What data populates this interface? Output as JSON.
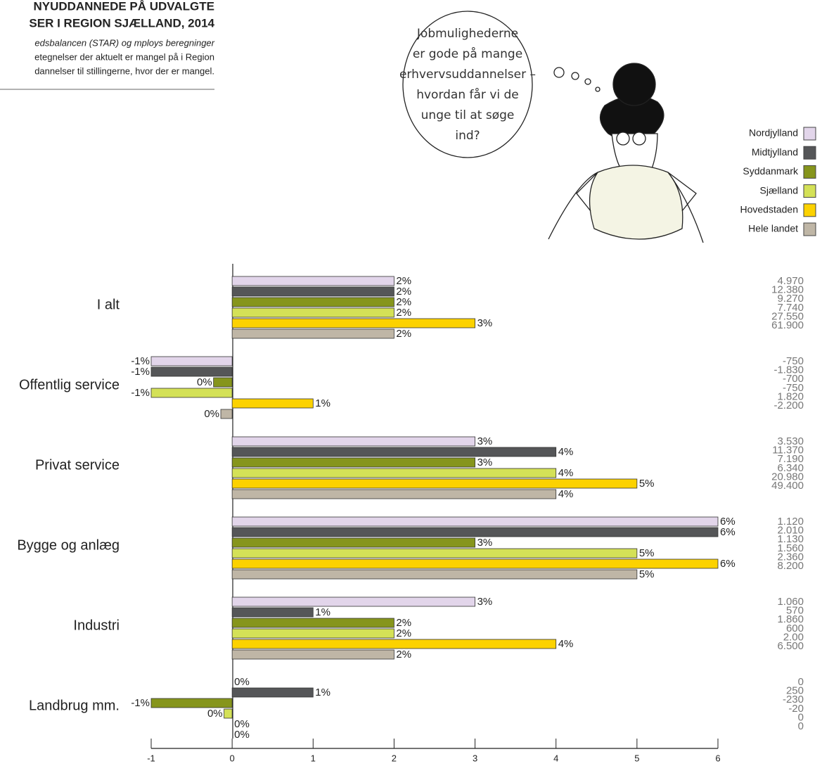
{
  "chart_data": {
    "type": "bar",
    "title": [
      "NYUDDANNEDE PÅ UDVALGTE",
      "SER I REGION SJÆLLAND, 2014"
    ],
    "subtitle": [
      "edsbalancen (STAR) og mploys beregninger",
      "etegnelser der aktuelt er mangel på i Region",
      "dannelser til stillingerne, hvor der er mangel."
    ],
    "annotation": [
      "Jobmulighederne",
      "er gode på mange",
      "erhvervsuddannelser –",
      "hvordan får vi de",
      "unge til at søge",
      "ind?"
    ],
    "categories": [
      "I alt",
      "Offentlig service",
      "Privat service",
      "Bygge og anlæg",
      "Industri",
      "Landbrug mm."
    ],
    "series": [
      {
        "name": "Nordjylland",
        "color": "#e2d5ea",
        "values": [
          2,
          -1,
          3,
          6,
          3,
          0
        ],
        "value_labels": [
          "2%",
          "-1%",
          "3%",
          "6%",
          "3%",
          "0%"
        ],
        "counts": [
          "4.970",
          "-750",
          "3.530",
          "1.120",
          "1.060",
          "0"
        ]
      },
      {
        "name": "Midtjylland",
        "color": "#555658",
        "values": [
          2,
          -1,
          4,
          6,
          1,
          1
        ],
        "value_labels": [
          "2%",
          "-1%",
          "4%",
          "6%",
          "1%",
          "1%"
        ],
        "counts": [
          "12.380",
          "-1.830",
          "11.370",
          "2.010",
          "570",
          "250"
        ]
      },
      {
        "name": "Syddanmark",
        "color": "#86951c",
        "values": [
          2,
          -0.23,
          3,
          3,
          2,
          -1
        ],
        "value_labels": [
          "2%",
          "0%",
          "3%",
          "3%",
          "2%",
          "-1%"
        ],
        "counts": [
          "9.270",
          "-700",
          "7.190",
          "1.130",
          "1.860",
          "-230"
        ]
      },
      {
        "name": "Sjælland",
        "color": "#d4e157",
        "values": [
          2,
          -1,
          4,
          5,
          2,
          -0.1
        ],
        "value_labels": [
          "2%",
          "-1%",
          "4%",
          "5%",
          "2%",
          "0%"
        ],
        "counts": [
          "7.740",
          "-750",
          "6.340",
          "1.560",
          "600",
          "-20"
        ]
      },
      {
        "name": "Hovedstaden",
        "color": "#fcd200",
        "values": [
          3,
          1,
          5,
          6,
          4,
          0
        ],
        "value_labels": [
          "3%",
          "1%",
          "5%",
          "6%",
          "4%",
          "0%"
        ],
        "counts": [
          "27.550",
          "1.820",
          "20.980",
          "2.360",
          "2.00",
          "0"
        ]
      },
      {
        "name": "Hele landet",
        "color": "#bfb6a6",
        "values": [
          2,
          -0.14,
          4,
          5,
          2,
          0
        ],
        "value_labels": [
          "2%",
          "0%",
          "4%",
          "5%",
          "2%",
          "0%"
        ],
        "counts": [
          "61.900",
          "-2.200",
          "49.400",
          "8.200",
          "6.500",
          "0"
        ]
      }
    ],
    "xlim": [
      -1,
      6
    ],
    "xticks": [
      -1,
      0,
      1,
      2,
      3,
      4,
      5,
      6
    ]
  }
}
